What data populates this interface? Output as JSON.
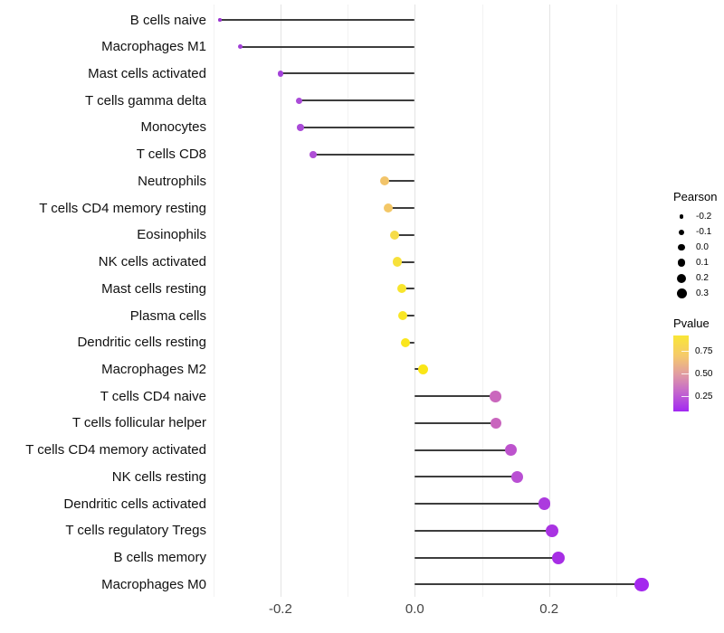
{
  "chart_data": {
    "type": "lollipop",
    "orientation": "horizontal",
    "title": "",
    "xlabel": "",
    "ylabel": "",
    "xlim": [
      -0.3,
      0.35
    ],
    "x_major_ticks": [
      -0.2,
      0.0,
      0.2
    ],
    "x_tick_labels": [
      "-0.2",
      "0.0",
      "0.2"
    ],
    "x_minor_gridlines": [
      -0.3,
      -0.1,
      0.1,
      0.3
    ],
    "grid": "on",
    "stem_color": "#3d3d3d",
    "points": [
      {
        "label": "B cells naive",
        "pearson": -0.29,
        "dot_color": "#9b35d0",
        "dot_size": 3.6
      },
      {
        "label": "Macrophages M1",
        "pearson": -0.26,
        "dot_color": "#a13fd6",
        "dot_size": 5.2
      },
      {
        "label": "Mast cells activated",
        "pearson": -0.2,
        "dot_color": "#a442da",
        "dot_size": 6.6
      },
      {
        "label": "T cells gamma delta",
        "pearson": -0.172,
        "dot_color": "#aa4bd8",
        "dot_size": 7.3
      },
      {
        "label": "Monocytes",
        "pearson": -0.17,
        "dot_color": "#aa4bd8",
        "dot_size": 7.4
      },
      {
        "label": "T cells CD8",
        "pearson": -0.151,
        "dot_color": "#af4fd6",
        "dot_size": 7.8
      },
      {
        "label": "Neutrophils",
        "pearson": -0.045,
        "dot_color": "#f2c46a",
        "dot_size": 9.9
      },
      {
        "label": "T cells CD4 memory resting",
        "pearson": -0.039,
        "dot_color": "#f3c767",
        "dot_size": 10.0
      },
      {
        "label": "Eosinophils",
        "pearson": -0.03,
        "dot_color": "#f6dc49",
        "dot_size": 10.1
      },
      {
        "label": "NK cells activated",
        "pearson": -0.026,
        "dot_color": "#f7e13b",
        "dot_size": 10.2
      },
      {
        "label": "Mast cells resting",
        "pearson": -0.019,
        "dot_color": "#f8e52d",
        "dot_size": 10.4
      },
      {
        "label": "Plasma cells",
        "pearson": -0.018,
        "dot_color": "#f9e625",
        "dot_size": 10.4
      },
      {
        "label": "Dendritic cells resting",
        "pearson": -0.014,
        "dot_color": "#fae61d",
        "dot_size": 10.5
      },
      {
        "label": "Macrophages M2",
        "pearson": 0.013,
        "dot_color": "#fae617",
        "dot_size": 10.9
      },
      {
        "label": "T cells CD4 naive",
        "pearson": 0.12,
        "dot_color": "#ca67bd",
        "dot_size": 12.6
      },
      {
        "label": "T cells follicular helper",
        "pearson": 0.121,
        "dot_color": "#c965be",
        "dot_size": 12.6
      },
      {
        "label": "T cells CD4 memory activated",
        "pearson": 0.143,
        "dot_color": "#bd53cd",
        "dot_size": 12.9
      },
      {
        "label": "NK cells resting",
        "pearson": 0.152,
        "dot_color": "#b94fd3",
        "dot_size": 13.1
      },
      {
        "label": "Dendritic cells activated",
        "pearson": 0.193,
        "dot_color": "#ac3ade",
        "dot_size": 13.7
      },
      {
        "label": "T cells regulatory Tregs",
        "pearson": 0.205,
        "dot_color": "#a933e2",
        "dot_size": 13.9
      },
      {
        "label": "B cells memory",
        "pearson": 0.214,
        "dot_color": "#a72ee5",
        "dot_size": 14.0
      },
      {
        "label": "Macrophages M0",
        "pearson": 0.338,
        "dot_color": "#a428ee",
        "dot_size": 15.3
      }
    ],
    "size_legend": {
      "title": "Pearson",
      "entries": [
        {
          "label": "-0.2",
          "diameter": 4.6
        },
        {
          "label": "-0.1",
          "diameter": 6.0
        },
        {
          "label": "0.0",
          "diameter": 7.6
        },
        {
          "label": "0.1",
          "diameter": 8.8
        },
        {
          "label": "0.2",
          "diameter": 10.0
        },
        {
          "label": "0.3",
          "diameter": 11.0
        }
      ],
      "key_color": "#000000"
    },
    "color_legend": {
      "title": "Pvalue",
      "tick_labels": [
        "0.75",
        "0.50",
        "0.25"
      ],
      "gradient_top": "#f9e636",
      "gradient_mid": "#e09aa4",
      "gradient_bottom": "#a228f2",
      "position": "right"
    }
  }
}
